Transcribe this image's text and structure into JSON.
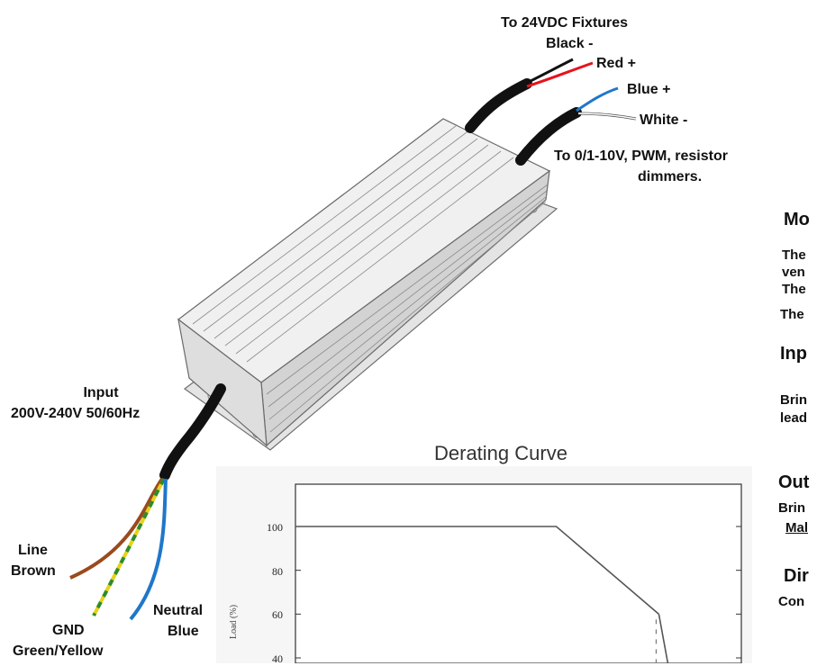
{
  "labels": {
    "fixtures_title": "To 24VDC Fixtures",
    "black": "Black -",
    "red": "Red +",
    "blue": "Blue +",
    "white": "White -",
    "dimmer_line1": "To 0/1-10V, PWM, resistor",
    "dimmer_line2": "dimmers.",
    "input_title": "Input",
    "input_spec": "200V-240V 50/60Hz",
    "line": "Line",
    "brown": "Brown",
    "neutral": "Neutral",
    "neutral_blue": "Blue",
    "gnd": "GND",
    "gnd_color": "Green/Yellow"
  },
  "side_text": {
    "h1": "Mo",
    "p1a": "The",
    "p1b": "ven",
    "p1c": "The",
    "p1d": "The",
    "h2": "Inp",
    "p2a": "Brin",
    "p2b": "lead",
    "h3": "Out",
    "p3a": "Brin",
    "p3b": "Mal",
    "h4": "Dir",
    "p4a": "Con"
  },
  "colors": {
    "red_wire": "#e8121b",
    "blue_wire": "#1f77c9",
    "brown_wire": "#9a4a1e",
    "gnd_green": "#2e8b2e",
    "gnd_yellow": "#e6d21a",
    "cable": "#111111"
  },
  "chart_data": {
    "type": "line",
    "title": "Derating Curve",
    "ylabel": "Load (%)",
    "y_ticks": [
      "100",
      "80",
      "60",
      "40"
    ],
    "series": [
      {
        "x": [
          0,
          0.585,
          0.815
        ],
        "y": [
          100,
          100,
          60
        ]
      }
    ],
    "ylim": [
      40,
      110
    ],
    "grid": false
  }
}
